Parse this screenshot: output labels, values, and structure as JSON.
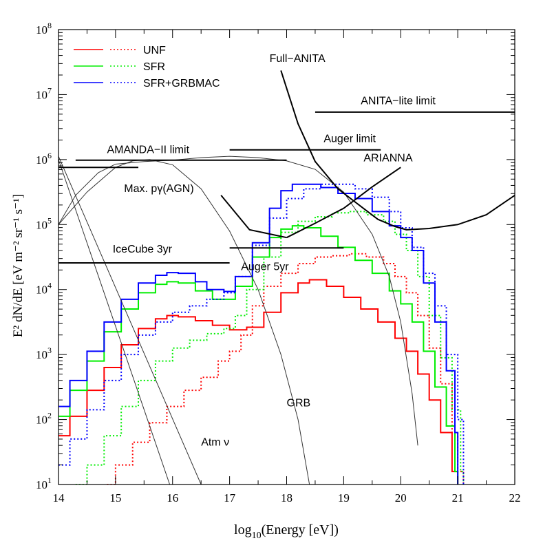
{
  "chart_data": {
    "type": "line",
    "xlabel_main": "log",
    "xlabel_sub": "10",
    "xlabel_rest": "(Energy [eV])",
    "ylabel": "E² dN/dE [eV m⁻² sr⁻¹ s⁻¹]",
    "xlim": [
      14,
      22
    ],
    "ylim_log10": [
      1,
      8
    ],
    "y_scale": "log",
    "x_ticks": [
      "14",
      "15",
      "16",
      "17",
      "18",
      "19",
      "20",
      "21",
      "22"
    ],
    "y_ticks": [
      {
        "base": "10",
        "exp": "1"
      },
      {
        "base": "10",
        "exp": "2"
      },
      {
        "base": "10",
        "exp": "3"
      },
      {
        "base": "10",
        "exp": "4"
      },
      {
        "base": "10",
        "exp": "5"
      },
      {
        "base": "10",
        "exp": "6"
      },
      {
        "base": "10",
        "exp": "7"
      },
      {
        "base": "10",
        "exp": "8"
      }
    ],
    "legend": {
      "placement": "top-left",
      "entries": [
        {
          "label": "UNF",
          "color": "#ff0000"
        },
        {
          "label": "SFR",
          "color": "#00ee00"
        },
        {
          "label": "SFR+GRBMAC",
          "color": "#0000ff"
        }
      ]
    },
    "colors": {
      "unf": "#ff0000",
      "sfr": "#00ee00",
      "grbmac": "#0000ff",
      "black": "#000000",
      "thin": "#333333"
    },
    "series": [
      {
        "id": "unf-solid",
        "color": "#ff0000",
        "dash": "solid",
        "step": true,
        "points": [
          [
            14,
            1.75
          ],
          [
            14.2,
            2.05
          ],
          [
            14.5,
            2.45
          ],
          [
            14.8,
            2.8
          ],
          [
            15.1,
            3.15
          ],
          [
            15.4,
            3.4
          ],
          [
            15.7,
            3.55
          ],
          [
            15.9,
            3.6
          ],
          [
            16.1,
            3.58
          ],
          [
            16.4,
            3.52
          ],
          [
            16.7,
            3.45
          ],
          [
            17.0,
            3.38
          ],
          [
            17.3,
            3.42
          ],
          [
            17.6,
            3.65
          ],
          [
            17.9,
            3.95
          ],
          [
            18.2,
            4.1
          ],
          [
            18.4,
            4.15
          ],
          [
            18.7,
            4.05
          ],
          [
            19.0,
            3.88
          ],
          [
            19.3,
            3.7
          ],
          [
            19.6,
            3.5
          ],
          [
            19.9,
            3.25
          ],
          [
            20.1,
            3.05
          ],
          [
            20.3,
            2.7
          ],
          [
            20.5,
            2.3
          ],
          [
            20.7,
            1.8
          ],
          [
            20.9,
            1.2
          ],
          [
            21.0,
            0.5
          ]
        ]
      },
      {
        "id": "unf-dot",
        "color": "#ff0000",
        "dash": "dot",
        "step": true,
        "points": [
          [
            14.85,
            1.0
          ],
          [
            15.0,
            1.3
          ],
          [
            15.3,
            1.65
          ],
          [
            15.6,
            1.95
          ],
          [
            15.9,
            2.2
          ],
          [
            16.2,
            2.45
          ],
          [
            16.5,
            2.65
          ],
          [
            16.8,
            2.9
          ],
          [
            17.0,
            3.05
          ],
          [
            17.2,
            3.3
          ],
          [
            17.4,
            3.75
          ],
          [
            17.6,
            4.05
          ],
          [
            17.9,
            4.25
          ],
          [
            18.2,
            4.4
          ],
          [
            18.5,
            4.5
          ],
          [
            18.8,
            4.52
          ],
          [
            19.1,
            4.55
          ],
          [
            19.4,
            4.5
          ],
          [
            19.7,
            4.4
          ],
          [
            19.9,
            4.2
          ],
          [
            20.1,
            3.95
          ],
          [
            20.3,
            3.6
          ],
          [
            20.5,
            3.1
          ],
          [
            20.7,
            2.55
          ],
          [
            20.9,
            1.8
          ],
          [
            21.0,
            1.2
          ],
          [
            21.1,
            0.5
          ]
        ]
      },
      {
        "id": "sfr-solid",
        "color": "#00ee00",
        "dash": "solid",
        "step": true,
        "points": [
          [
            14,
            2.05
          ],
          [
            14.2,
            2.45
          ],
          [
            14.5,
            2.9
          ],
          [
            14.8,
            3.35
          ],
          [
            15.1,
            3.7
          ],
          [
            15.4,
            3.95
          ],
          [
            15.7,
            4.08
          ],
          [
            15.9,
            4.12
          ],
          [
            16.1,
            4.1
          ],
          [
            16.4,
            3.98
          ],
          [
            16.7,
            3.85
          ],
          [
            16.9,
            3.85
          ],
          [
            17.1,
            4.05
          ],
          [
            17.4,
            4.5
          ],
          [
            17.7,
            4.8
          ],
          [
            17.9,
            4.93
          ],
          [
            18.1,
            4.98
          ],
          [
            18.3,
            4.95
          ],
          [
            18.6,
            4.82
          ],
          [
            18.9,
            4.65
          ],
          [
            19.2,
            4.45
          ],
          [
            19.5,
            4.25
          ],
          [
            19.8,
            3.98
          ],
          [
            20.0,
            3.78
          ],
          [
            20.2,
            3.5
          ],
          [
            20.4,
            3.05
          ],
          [
            20.6,
            2.5
          ],
          [
            20.8,
            1.9
          ],
          [
            20.95,
            1.2
          ],
          [
            21.0,
            0.5
          ]
        ]
      },
      {
        "id": "sfr-dot",
        "color": "#00ee00",
        "dash": "dot",
        "step": true,
        "points": [
          [
            14.3,
            1.0
          ],
          [
            14.5,
            1.3
          ],
          [
            14.8,
            1.75
          ],
          [
            15.1,
            2.2
          ],
          [
            15.4,
            2.6
          ],
          [
            15.7,
            2.9
          ],
          [
            16.0,
            3.1
          ],
          [
            16.3,
            3.22
          ],
          [
            16.6,
            3.32
          ],
          [
            16.9,
            3.4
          ],
          [
            17.1,
            3.6
          ],
          [
            17.3,
            4.0
          ],
          [
            17.6,
            4.5
          ],
          [
            17.9,
            4.88
          ],
          [
            18.2,
            5.05
          ],
          [
            18.5,
            5.12
          ],
          [
            18.8,
            5.18
          ],
          [
            19.1,
            5.2
          ],
          [
            19.4,
            5.15
          ],
          [
            19.7,
            5.05
          ],
          [
            19.9,
            4.85
          ],
          [
            20.1,
            4.6
          ],
          [
            20.3,
            4.2
          ],
          [
            20.5,
            3.6
          ],
          [
            20.7,
            2.95
          ],
          [
            20.9,
            2.15
          ],
          [
            21.05,
            1.2
          ],
          [
            21.1,
            0.5
          ]
        ]
      },
      {
        "id": "grbmac-solid",
        "color": "#0000ff",
        "dash": "solid",
        "step": true,
        "points": [
          [
            14,
            2.2
          ],
          [
            14.2,
            2.6
          ],
          [
            14.5,
            3.05
          ],
          [
            14.8,
            3.5
          ],
          [
            15.1,
            3.85
          ],
          [
            15.4,
            4.1
          ],
          [
            15.7,
            4.22
          ],
          [
            15.9,
            4.26
          ],
          [
            16.1,
            4.25
          ],
          [
            16.4,
            4.12
          ],
          [
            16.6,
            4.0
          ],
          [
            16.9,
            3.97
          ],
          [
            17.1,
            4.2
          ],
          [
            17.4,
            4.72
          ],
          [
            17.7,
            5.25
          ],
          [
            17.9,
            5.52
          ],
          [
            18.1,
            5.62
          ],
          [
            18.3,
            5.62
          ],
          [
            18.6,
            5.57
          ],
          [
            18.9,
            5.48
          ],
          [
            19.2,
            5.4
          ],
          [
            19.5,
            5.2
          ],
          [
            19.8,
            4.98
          ],
          [
            20.0,
            4.8
          ],
          [
            20.2,
            4.6
          ],
          [
            20.4,
            4.1
          ],
          [
            20.6,
            3.5
          ],
          [
            20.8,
            2.75
          ],
          [
            20.95,
            1.8
          ],
          [
            21.0,
            0.5
          ]
        ]
      },
      {
        "id": "grbmac-dot",
        "color": "#0000ff",
        "dash": "dot",
        "step": true,
        "points": [
          [
            14,
            1.3
          ],
          [
            14.2,
            1.7
          ],
          [
            14.5,
            2.15
          ],
          [
            14.8,
            2.6
          ],
          [
            15.1,
            3.0
          ],
          [
            15.4,
            3.3
          ],
          [
            15.7,
            3.5
          ],
          [
            16.0,
            3.65
          ],
          [
            16.3,
            3.75
          ],
          [
            16.6,
            3.85
          ],
          [
            16.9,
            3.95
          ],
          [
            17.1,
            4.2
          ],
          [
            17.4,
            4.68
          ],
          [
            17.7,
            5.1
          ],
          [
            18.0,
            5.4
          ],
          [
            18.3,
            5.55
          ],
          [
            18.6,
            5.62
          ],
          [
            18.9,
            5.62
          ],
          [
            19.2,
            5.55
          ],
          [
            19.5,
            5.42
          ],
          [
            19.8,
            5.2
          ],
          [
            20.0,
            4.95
          ],
          [
            20.2,
            4.65
          ],
          [
            20.4,
            4.25
          ],
          [
            20.6,
            3.75
          ],
          [
            20.8,
            3.0
          ],
          [
            21.0,
            2.0
          ],
          [
            21.1,
            0.5
          ]
        ]
      },
      {
        "id": "grb",
        "color": "#333333",
        "dash": "thin",
        "step": false,
        "points": [
          [
            14,
            5.0
          ],
          [
            14.5,
            5.5
          ],
          [
            15.0,
            5.88
          ],
          [
            15.3,
            5.98
          ],
          [
            15.6,
            6.0
          ],
          [
            16.0,
            5.92
          ],
          [
            16.5,
            5.55
          ],
          [
            17.0,
            4.9
          ],
          [
            17.5,
            4.0
          ],
          [
            17.9,
            3.0
          ],
          [
            18.2,
            2.0
          ],
          [
            18.4,
            1.0
          ]
        ]
      },
      {
        "id": "waxman-bahcall",
        "color": "#333333",
        "dash": "thin",
        "step": false,
        "points": [
          [
            14,
            5.0
          ],
          [
            14.3,
            5.45
          ],
          [
            14.7,
            5.8
          ],
          [
            15.0,
            5.93
          ],
          [
            15.5,
            5.97
          ],
          [
            16.0,
            5.99
          ],
          [
            16.5,
            6.03
          ],
          [
            17.0,
            6.05
          ],
          [
            17.5,
            6.03
          ],
          [
            18.0,
            5.98
          ],
          [
            18.5,
            5.85
          ],
          [
            19.0,
            5.5
          ],
          [
            19.5,
            4.85
          ],
          [
            19.8,
            4.2
          ],
          [
            20.0,
            3.5
          ],
          [
            20.2,
            2.4
          ],
          [
            20.3,
            1.6
          ]
        ]
      },
      {
        "id": "atm-nu-1",
        "color": "#333333",
        "dash": "thin",
        "step": false,
        "points": [
          [
            14,
            6.05
          ],
          [
            16.5,
            1.0
          ]
        ]
      },
      {
        "id": "atm-nu-2",
        "color": "#333333",
        "dash": "thin",
        "step": false,
        "points": [
          [
            14,
            6.0
          ],
          [
            15.95,
            1.0
          ]
        ]
      },
      {
        "id": "full-anita",
        "color": "#000000",
        "dash": "thick",
        "step": false,
        "points": [
          [
            17.9,
            7.37
          ],
          [
            18.2,
            6.55
          ],
          [
            18.5,
            5.97
          ],
          [
            18.9,
            5.55
          ],
          [
            19.3,
            5.28
          ],
          [
            19.6,
            5.08
          ],
          [
            19.9,
            4.97
          ],
          [
            20.1,
            4.92
          ],
          [
            20.5,
            4.94
          ],
          [
            21.0,
            5.0
          ],
          [
            21.5,
            5.15
          ],
          [
            22,
            5.45
          ]
        ]
      },
      {
        "id": "max-pgamma",
        "color": "#000000",
        "dash": "thick",
        "step": false,
        "points": [
          [
            16.85,
            5.45
          ],
          [
            17.35,
            4.92
          ],
          [
            18.0,
            4.8
          ]
        ]
      },
      {
        "id": "arianna",
        "color": "#000000",
        "dash": "thick",
        "step": false,
        "points": [
          [
            18.0,
            4.8
          ],
          [
            18.5,
            5.02
          ],
          [
            19.0,
            5.25
          ],
          [
            19.5,
            5.58
          ],
          [
            20.0,
            5.88
          ]
        ]
      }
    ],
    "limits": [
      {
        "id": "anita-lite",
        "x1": 18.5,
        "x2": 22.0,
        "y": 6.73,
        "label": "ANITA−lite limit",
        "label_x": 19.3,
        "label_y": 6.85
      },
      {
        "id": "auger-limit",
        "x1": 17.0,
        "x2": 19.65,
        "y": 6.15,
        "label": "Auger limit",
        "label_x": 18.65,
        "label_y": 6.27
      },
      {
        "id": "amanda-upper",
        "x1": 14.3,
        "x2": 18.0,
        "y": 5.99,
        "label": "AMANDA−II limit",
        "label_x": 14.85,
        "label_y": 6.1
      },
      {
        "id": "amanda-lower",
        "x1": 14.0,
        "x2": 15.4,
        "y": 5.88,
        "label": "",
        "label_x": 0,
        "label_y": 0
      },
      {
        "id": "auger-5yr",
        "x1": 17.0,
        "x2": 19.0,
        "y": 4.64,
        "label": "Auger 5yr",
        "label_x": 17.2,
        "label_y": 4.3
      },
      {
        "id": "icecube-3yr",
        "x1": 14.0,
        "x2": 17.0,
        "y": 4.41,
        "label": "IceCube 3yr",
        "label_x": 14.95,
        "label_y": 4.57
      }
    ],
    "annotations": [
      {
        "id": "full-anita-label",
        "text": "Full−ANITA",
        "x": 17.7,
        "y": 7.5
      },
      {
        "id": "arianna-label",
        "text": "ARIANNA",
        "x": 19.35,
        "y": 5.97
      },
      {
        "id": "max-pgamma-label",
        "text": "Max. pγ(AGN)",
        "x": 15.15,
        "y": 5.5
      },
      {
        "id": "grb-label",
        "text": "GRB",
        "x": 18.0,
        "y": 2.2
      },
      {
        "id": "atm-nu-label",
        "text": "Atm ν",
        "x": 16.5,
        "y": 1.6
      }
    ]
  }
}
